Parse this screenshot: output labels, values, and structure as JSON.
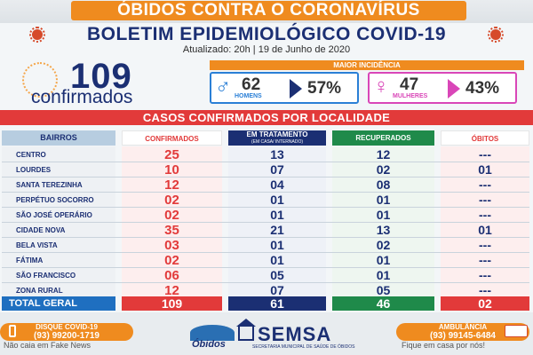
{
  "banner": {
    "title": "ÓBIDOS CONTRA O CORONAVÍRUS"
  },
  "header": {
    "title": "BOLETIM EPIDEMIOLÓGICO COVID-19",
    "subtitle": "Atualizado: 20h  |  19 de Junho de 2020"
  },
  "confirmed": {
    "number": "109",
    "label": "confirmados"
  },
  "incidence": {
    "title": "MAIOR INCIDÊNCIA",
    "men": {
      "symbol": "♂",
      "count": "62",
      "label": "HOMENS",
      "percent": "57%"
    },
    "women": {
      "symbol": "♀",
      "count": "47",
      "label": "MULHERES",
      "percent": "43%"
    }
  },
  "section_title": "CASOS CONFIRMADOS POR LOCALIDADE",
  "table": {
    "headers": {
      "bairros": "BAIRROS",
      "confirmados": "CONFIRMADOS",
      "tratamento": "EM TRATAMENTO",
      "tratamento_sub": "(EM CASA/ INTERNADO)",
      "recuperados": "RECUPERADOS",
      "obitos": "ÓBITOS"
    },
    "rows": [
      {
        "name": "CENTRO",
        "conf": "25",
        "trat": "13",
        "rec": "12",
        "obit": "---"
      },
      {
        "name": "LOURDES",
        "conf": "10",
        "trat": "07",
        "rec": "02",
        "obit": "01"
      },
      {
        "name": "SANTA TEREZINHA",
        "conf": "12",
        "trat": "04",
        "rec": "08",
        "obit": "---"
      },
      {
        "name": "PERPÉTUO SOCORRO",
        "conf": "02",
        "trat": "01",
        "rec": "01",
        "obit": "---"
      },
      {
        "name": "SÃO JOSÉ OPERÁRIO",
        "conf": "02",
        "trat": "01",
        "rec": "01",
        "obit": "---"
      },
      {
        "name": "CIDADE NOVA",
        "conf": "35",
        "trat": "21",
        "rec": "13",
        "obit": "01"
      },
      {
        "name": "BELA VISTA",
        "conf": "03",
        "trat": "01",
        "rec": "02",
        "obit": "---"
      },
      {
        "name": "FÁTIMA",
        "conf": "02",
        "trat": "01",
        "rec": "01",
        "obit": "---"
      },
      {
        "name": "SÃO FRANCISCO",
        "conf": "06",
        "trat": "05",
        "rec": "01",
        "obit": "---"
      },
      {
        "name": "ZONA RURAL",
        "conf": "12",
        "trat": "07",
        "rec": "05",
        "obit": "---"
      }
    ],
    "total": {
      "label": "TOTAL GERAL",
      "conf": "109",
      "trat": "61",
      "rec": "46",
      "obit": "02"
    }
  },
  "footer": {
    "left_title": "DISQUE COVID-19",
    "left_phone": "(93) 99200-1719",
    "left_note": "Não caia em Fake News",
    "city_logo": "Óbidos",
    "semsa": "SEMSA",
    "semsa_sub": "SECRETARIA MUNICIPAL DE SAÚDE DE ÓBIDOS",
    "right_title": "AMBULÂNCIA",
    "right_phone": "(93) 99145-6484",
    "right_note": "Fique em casa por nós!"
  },
  "colors": {
    "orange": "#ef8b1f",
    "navy": "#1b2f73",
    "red": "#e23a3a",
    "green": "#1f8a4a",
    "blue": "#1f6fc0"
  }
}
